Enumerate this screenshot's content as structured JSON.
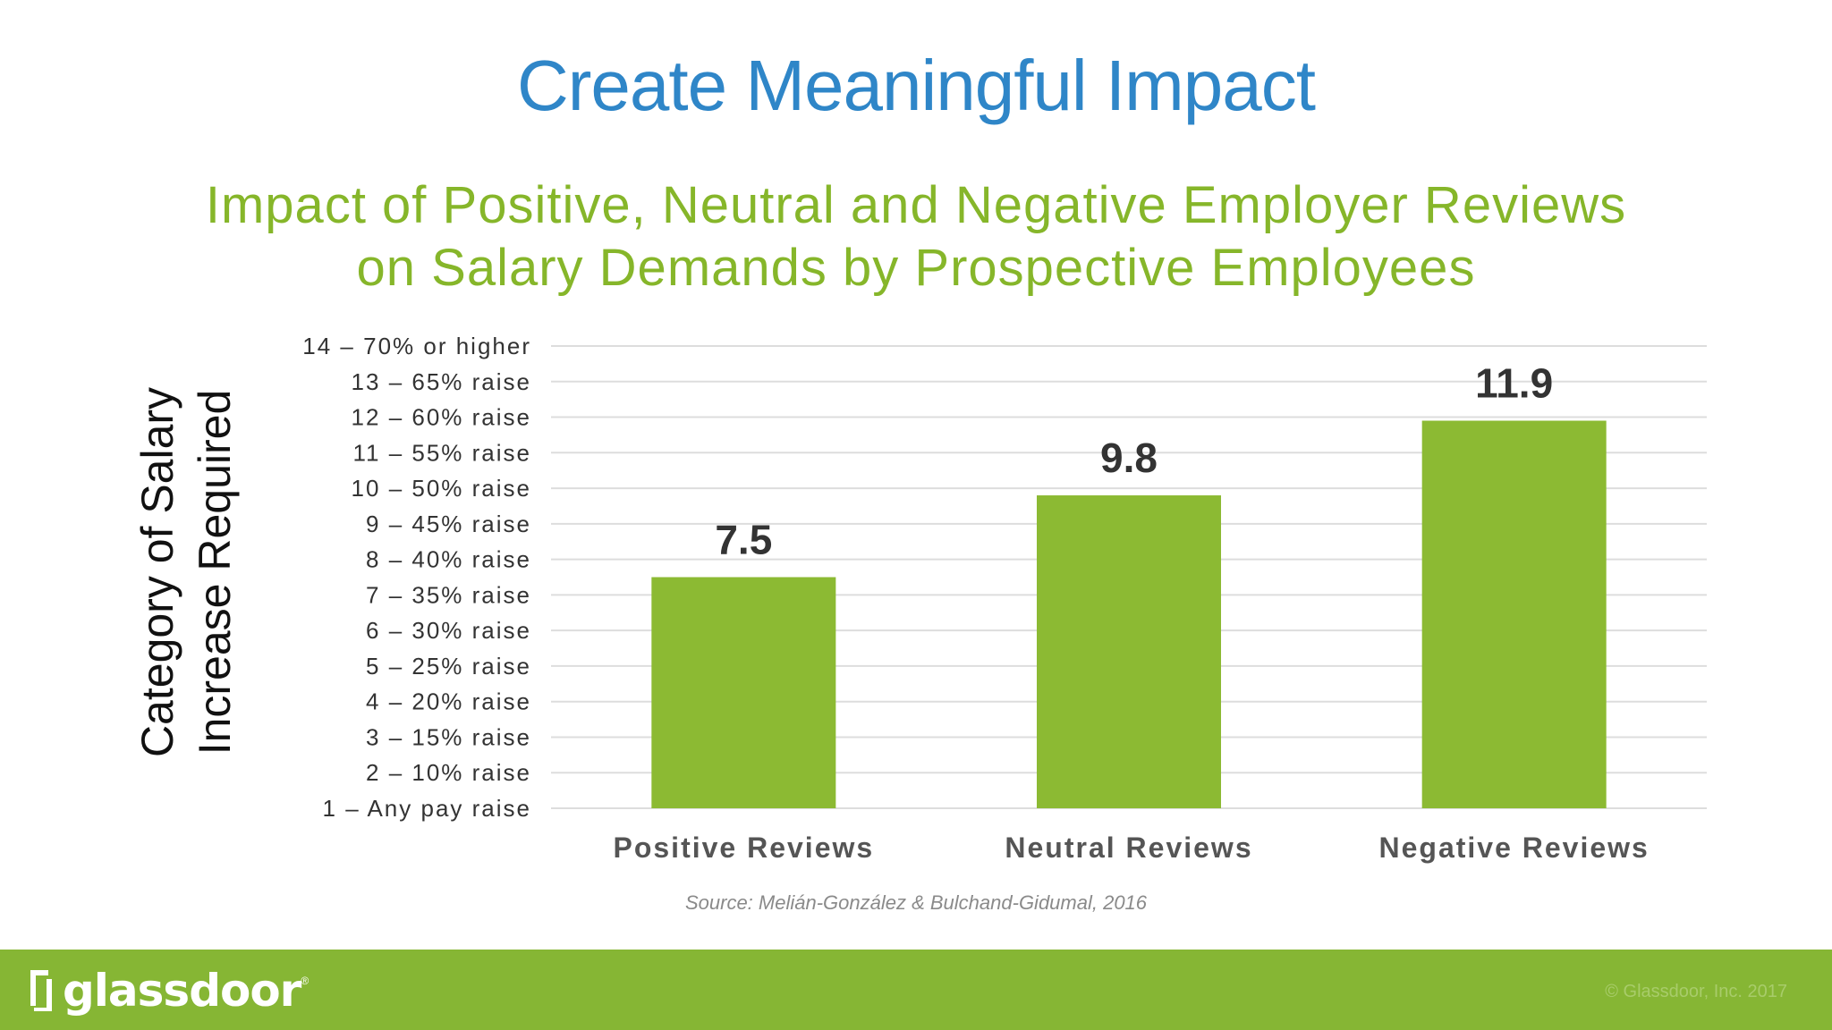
{
  "header": {
    "title": "Create Meaningful Impact",
    "subtitle_line1": "Impact of Positive, Neutral and Negative Employer Reviews",
    "subtitle_line2": "on Salary Demands by Prospective Employees"
  },
  "chart_data": {
    "type": "bar",
    "categories": [
      "Positive Reviews",
      "Neutral Reviews",
      "Negative Reviews"
    ],
    "values": [
      7.5,
      9.8,
      11.9
    ],
    "data_labels": [
      "7.5",
      "9.8",
      "11.9"
    ],
    "ylabel_lines": [
      "Category of Salary",
      "Increase Required"
    ],
    "ylim": [
      1,
      14
    ],
    "yticks": [
      1,
      2,
      3,
      4,
      5,
      6,
      7,
      8,
      9,
      10,
      11,
      12,
      13,
      14
    ],
    "ytick_labels": [
      "1 – Any pay raise",
      "2 – 10% raise",
      "3 – 15% raise",
      "4 – 20% raise",
      "5 – 25% raise",
      "6 – 30% raise",
      "7 – 35% raise",
      "8 – 40% raise",
      "9 – 45% raise",
      "10 – 50% raise",
      "11 – 55% raise",
      "12 – 60% raise",
      "13 – 65% raise",
      "14 – 70% or higher"
    ],
    "grid": true,
    "bar_color": "#8cba33",
    "gridline_color": "#dddddd",
    "tick_label_color": "#333333",
    "category_label_color": "#555555"
  },
  "source": "Source: Melián-González & Bulchand-Gidumal, 2016",
  "footer": {
    "logo_text": "glassdoor",
    "logo_reg": "®",
    "copyright": "© Glassdoor, Inc. 2017",
    "background": "#86b634"
  }
}
